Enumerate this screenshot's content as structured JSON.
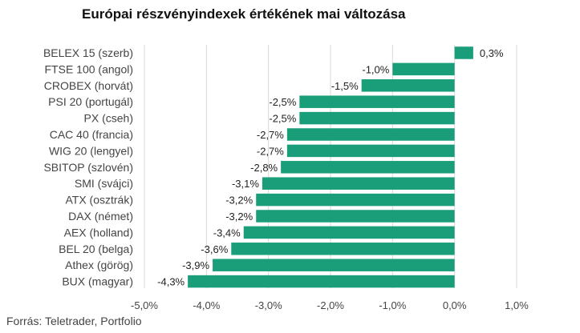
{
  "title": "Európai részvényindexek értékének mai változása",
  "source": "Forrás: Teletrader, Portfolio",
  "colors": {
    "bar": "#1a9e7a"
  },
  "chart_data": {
    "type": "bar",
    "orientation": "horizontal",
    "title": "Európai részvényindexek értékének mai változása",
    "categories": [
      "BELEX 15 (szerb)",
      "FTSE 100 (angol)",
      "CROBEX (horvát)",
      "PSI 20 (portugál)",
      "PX (cseh)",
      "CAC 40 (francia)",
      "WIG 20 (lengyel)",
      "SBITOP (szlovén)",
      "SMI (svájci)",
      "ATX (osztrák)",
      "DAX (német)",
      "AEX (holland)",
      "BEL 20 (belga)",
      "Athex (görög)",
      "BUX (magyar)"
    ],
    "values": [
      0.3,
      -1.0,
      -1.5,
      -2.5,
      -2.5,
      -2.7,
      -2.7,
      -2.8,
      -3.1,
      -3.2,
      -3.2,
      -3.4,
      -3.6,
      -3.9,
      -4.3
    ],
    "value_labels": [
      "0,3%",
      "-1,0%",
      "-1,5%",
      "-2,5%",
      "-2,5%",
      "-2,7%",
      "-2,7%",
      "-2,8%",
      "-3,1%",
      "-3,2%",
      "-3,2%",
      "-3,4%",
      "-3,6%",
      "-3,9%",
      "-4,3%"
    ],
    "x_ticks": [
      -5,
      -4,
      -3,
      -2,
      -1,
      0,
      1
    ],
    "x_tick_labels": [
      "-5,0%",
      "-4,0%",
      "-3,0%",
      "-2,0%",
      "-1,0%",
      "0,0%",
      "1,0%"
    ],
    "xlim": [
      -5,
      1
    ],
    "grid": true
  }
}
